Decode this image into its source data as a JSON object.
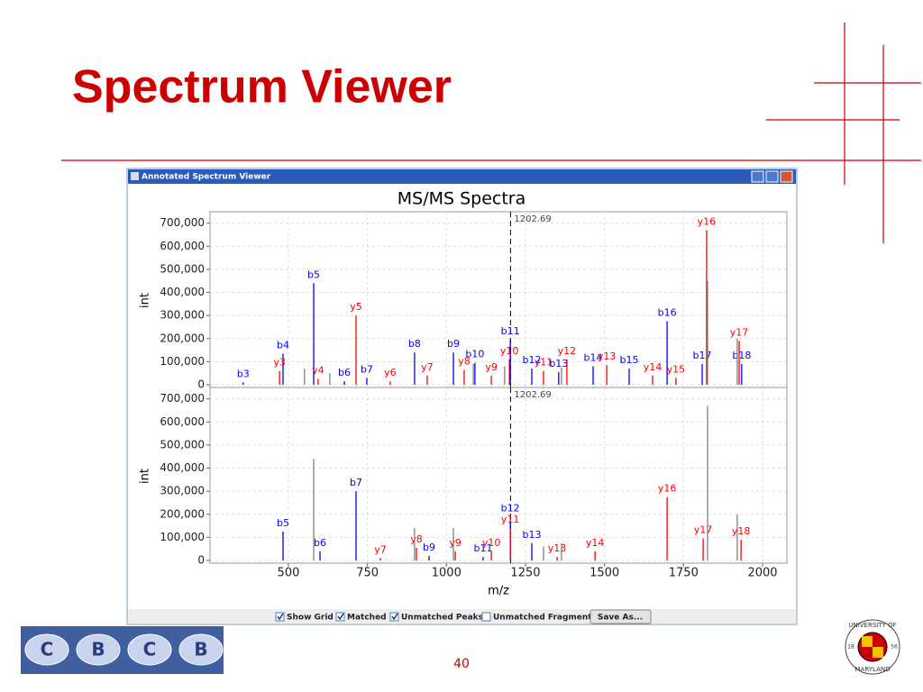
{
  "page": {
    "title": "Spectrum Viewer",
    "window_title": "Annotated Spectrum Viewer",
    "controls": [
      {
        "label": "Show Grid",
        "checked": true
      },
      {
        "label": "Matched",
        "checked": true
      },
      {
        "label": "Unmatched Peaks",
        "checked": true
      },
      {
        "label": "Unmatched Fragments",
        "checked": false
      }
    ],
    "button": "Save As...",
    "page_number": "40",
    "logo_letters": [
      "C",
      "B",
      "C",
      "B"
    ],
    "seal": {
      "top": "UNIVERSITY OF",
      "bottom": "MARYLAND",
      "left": "18",
      "right": "56"
    }
  },
  "chart_data": [
    {
      "type": "spectrum",
      "title": "MS/MS Spectra",
      "y_label": "int",
      "grid": true,
      "marker": 1202.69,
      "xlim": [
        252,
        2077
      ],
      "xticks": [
        500,
        750,
        1000,
        1250,
        1500,
        1750,
        2000
      ],
      "ylim": [
        0,
        730000
      ],
      "yticks": [
        0,
        {
          "value": 100000,
          "label": "100,000"
        },
        {
          "value": 200000,
          "label": "200,000"
        },
        {
          "value": 300000,
          "label": "300,000"
        },
        {
          "value": 400000,
          "label": "400,000"
        },
        {
          "value": 500000,
          "label": "500,000"
        },
        {
          "value": 600000,
          "label": "600,000"
        },
        {
          "value": 700000,
          "label": "700,000"
        }
      ],
      "series": [
        {
          "color": "#0000ff",
          "x": [
            357,
            483,
            580,
            677,
            748,
            899,
            1022,
            1090,
            1202,
            1270,
            1355,
            1464,
            1578,
            1698,
            1809,
            1934
          ],
          "values": [
            10000,
            135000,
            440000,
            15000,
            30000,
            140000,
            140000,
            95000,
            195000,
            70000,
            55000,
            80000,
            70000,
            275000,
            90000,
            90000
          ],
          "labels": [
            "b3",
            "b4",
            "b5",
            "b6",
            "b7",
            "b8",
            "b9",
            "b10",
            "b11",
            "b12",
            "b13",
            "b14",
            "b15",
            "b16",
            "b17",
            "b18"
          ]
        },
        {
          "color": "#ff0000",
          "x": [
            472,
            594,
            714,
            822,
            939,
            1056,
            1142,
            1199,
            1307,
            1381,
            1507,
            1652,
            1726,
            1823,
            1926
          ],
          "values": [
            60000,
            25000,
            300000,
            15000,
            40000,
            65000,
            40000,
            110000,
            60000,
            110000,
            85000,
            40000,
            30000,
            670000,
            190000
          ],
          "labels": [
            "y3",
            "y4",
            "y5",
            "y6",
            "y7",
            "y8",
            "y9",
            "y10",
            "y11",
            "y12",
            "y13",
            "y14",
            "y15",
            "y16",
            "y17"
          ]
        },
        {
          "color": "#808080",
          "x": [
            551,
            631,
            1085,
            1184,
            1364,
            1826,
            1920
          ],
          "values": [
            70000,
            50000,
            90000,
            80000,
            75000,
            450000,
            200000
          ]
        }
      ]
    },
    {
      "type": "spectrum",
      "y_label": "int",
      "x_label": "m/z",
      "grid": true,
      "marker": 1202.69,
      "xlim": [
        252,
        2077
      ],
      "xticks": [
        500,
        750,
        1000,
        1250,
        1500,
        1750,
        2000
      ],
      "ylim": [
        0,
        730000
      ],
      "yticks": [
        0,
        {
          "value": 100000,
          "label": "100,000"
        },
        {
          "value": 200000,
          "label": "200,000"
        },
        {
          "value": 300000,
          "label": "300,000"
        },
        {
          "value": 400000,
          "label": "400,000"
        },
        {
          "value": 500000,
          "label": "500,000"
        },
        {
          "value": 600000,
          "label": "600,000"
        },
        {
          "value": 700000,
          "label": "700,000"
        }
      ],
      "series": [
        {
          "color": "#0000ff",
          "x": [
            483,
            600,
            714,
            945,
            1116,
            1202,
            1270
          ],
          "values": [
            125000,
            40000,
            300000,
            20000,
            15000,
            190000,
            75000
          ],
          "labels": [
            "b5",
            "b6",
            "b7",
            "b9",
            "b11",
            "b12",
            "b13"
          ]
        },
        {
          "color": "#ff0000",
          "x": [
            791,
            905,
            1028,
            1142,
            1202,
            1350,
            1470,
            1698,
            1812,
            1932
          ],
          "values": [
            10000,
            55000,
            40000,
            40000,
            140000,
            15000,
            40000,
            275000,
            95000,
            90000
          ],
          "labels": [
            "y7",
            "y8",
            "y9",
            "y10",
            "y11",
            "y13",
            "y14",
            "y16",
            "y17",
            "y18"
          ]
        },
        {
          "color": "#808080",
          "x": [
            580,
            899,
            1022,
            1307,
            1364,
            1826,
            1920
          ],
          "values": [
            440000,
            140000,
            140000,
            60000,
            75000,
            670000,
            200000
          ]
        }
      ]
    }
  ]
}
